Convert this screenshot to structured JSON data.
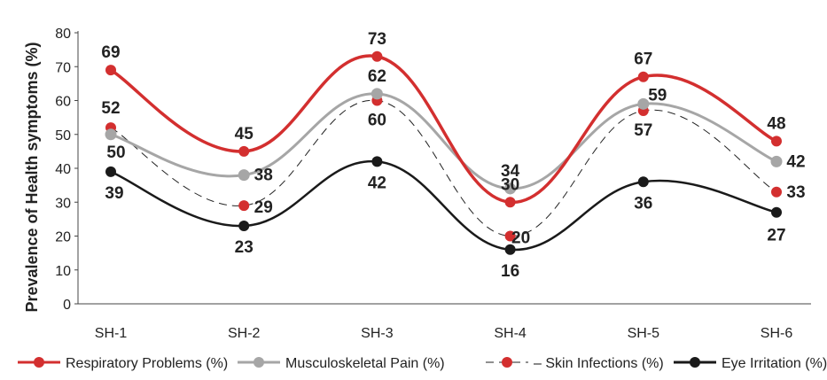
{
  "chart_data": {
    "type": "line",
    "categories": [
      "SH-1",
      "SH-2",
      "SH-3",
      "SH-4",
      "SH-5",
      "SH-6"
    ],
    "ylabel": "Prevalence of Health symptoms (%)",
    "xlabel": "",
    "ylim": [
      0,
      80
    ],
    "yticks": [
      0,
      10,
      20,
      30,
      40,
      50,
      60,
      70,
      80
    ],
    "grid": false,
    "legend_position": "bottom",
    "series": [
      {
        "name": "Respiratory Problems (%)",
        "values": [
          69,
          45,
          73,
          30,
          67,
          48
        ],
        "color": "#d32f2f",
        "style": "solid",
        "marker_color": "#d32f2f"
      },
      {
        "name": "Musculoskeletal Pain (%)",
        "values": [
          50,
          38,
          62,
          34,
          59,
          42
        ],
        "color": "#a6a6a6",
        "style": "solid",
        "marker_color": "#a6a6a6"
      },
      {
        "name": "Skin Infections (%)",
        "legend_prefix": "– ",
        "values": [
          52,
          29,
          60,
          20,
          57,
          33
        ],
        "color": "#222222",
        "style": "dashed",
        "marker_color": "#d32f2f"
      },
      {
        "name": "Eye Irritation (%)",
        "values": [
          39,
          23,
          42,
          16,
          36,
          27
        ],
        "color": "#1a1a1a",
        "style": "solid",
        "marker_color": "#1a1a1a"
      }
    ]
  }
}
